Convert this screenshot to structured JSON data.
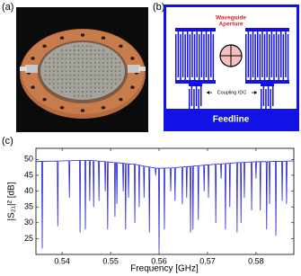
{
  "panel_labels": [
    "(a)",
    "(b)",
    "(c)"
  ],
  "diagram": {
    "aperture_label": [
      "Waveguide",
      "Aperture"
    ],
    "coupling_label": "Coupling IDC",
    "feedline_label": "Feedline"
  },
  "chart_data": {
    "type": "line",
    "xlabel": "Frequency [GHz]",
    "ylabel": "|S₂₁|² [dB]",
    "x": [
      0.5346,
      0.5358,
      0.5359,
      0.536,
      0.539,
      0.5391,
      0.5392,
      0.5414,
      0.5415,
      0.5416,
      0.5436,
      0.5437,
      0.5438,
      0.5447,
      0.5448,
      0.5449,
      0.5456,
      0.5457,
      0.5458,
      0.5464,
      0.5465,
      0.5466,
      0.5475,
      0.5476,
      0.5477,
      0.5488,
      0.5489,
      0.549,
      0.5493,
      0.5494,
      0.5495,
      0.5508,
      0.5509,
      0.551,
      0.5512,
      0.5513,
      0.5514,
      0.5525,
      0.5526,
      0.5527,
      0.553,
      0.5531,
      0.5532,
      0.5536,
      0.5537,
      0.5538,
      0.5549,
      0.555,
      0.5551,
      0.5558,
      0.5559,
      0.556,
      0.5568,
      0.5569,
      0.557,
      0.5579,
      0.558,
      0.5581,
      0.5592,
      0.5593,
      0.5594,
      0.5599,
      0.56,
      0.5601,
      0.561,
      0.5611,
      0.5612,
      0.5623,
      0.5624,
      0.5625,
      0.5632,
      0.5633,
      0.5634,
      0.5647,
      0.5648,
      0.5649,
      0.5656,
      0.5657,
      0.5658,
      0.5664,
      0.5665,
      0.5666,
      0.5669,
      0.567,
      0.5671,
      0.568,
      0.5681,
      0.5682,
      0.5692,
      0.5693,
      0.5694,
      0.5701,
      0.5702,
      0.5703,
      0.5716,
      0.5717,
      0.5718,
      0.5727,
      0.5728,
      0.5729,
      0.5736,
      0.5737,
      0.5738,
      0.5745,
      0.5746,
      0.5747,
      0.576,
      0.5761,
      0.5762,
      0.5768,
      0.5769,
      0.577,
      0.5775,
      0.5776,
      0.5777,
      0.579,
      0.5791,
      0.5792,
      0.5799,
      0.58,
      0.5801,
      0.5808,
      0.5809,
      0.581,
      0.5821,
      0.5822,
      0.5823,
      0.5827,
      0.5828,
      0.5829,
      0.584,
      0.5841,
      0.5842,
      0.5853,
      0.5854,
      0.5855,
      0.5862,
      0.5863,
      0.5864,
      0.5878
    ],
    "series": [
      {
        "color": "#2323e0",
        "values": [
          49.3,
          49.4,
          22,
          49.4,
          49.5,
          29,
          49.5,
          49.6,
          38,
          49.6,
          49.7,
          27,
          49.7,
          49.7,
          28,
          49.7,
          49.7,
          37,
          49.7,
          49.6,
          35,
          49.6,
          49.5,
          37,
          49.5,
          49.3,
          40,
          49.3,
          49.2,
          28,
          49.2,
          49.0,
          32,
          49.0,
          49.0,
          36,
          49.0,
          48.8,
          40,
          48.8,
          48.7,
          28,
          48.7,
          48.6,
          38,
          48.6,
          48.5,
          30,
          48.5,
          48.2,
          35,
          48.2,
          47.9,
          38,
          47.9,
          47.6,
          27,
          47.6,
          47.3,
          45,
          47.3,
          47.2,
          21,
          47.2,
          47.3,
          28,
          47.3,
          47.3,
          40,
          47.3,
          47.4,
          37,
          47.4,
          47.6,
          36,
          47.6,
          47.7,
          38,
          47.7,
          47.8,
          27,
          47.8,
          47.9,
          28,
          47.9,
          48.0,
          31,
          48.0,
          48.2,
          40,
          48.2,
          48.3,
          38,
          48.3,
          48.5,
          30,
          48.5,
          48.6,
          44,
          48.6,
          48.7,
          28,
          48.7,
          48.8,
          35,
          48.8,
          49.0,
          27,
          49.0,
          49.0,
          30,
          49.0,
          49.1,
          38,
          49.1,
          49.2,
          34,
          49.2,
          49.3,
          44,
          49.3,
          49.3,
          34,
          49.3,
          49.3,
          28,
          49.3,
          49.3,
          36,
          49.3,
          49.4,
          26,
          49.4,
          49.4,
          37,
          49.4,
          49.5,
          36,
          49.5,
          49.5
        ]
      }
    ],
    "xlim": [
      0.5346,
      0.5878
    ],
    "ylim": [
      20,
      53.5
    ],
    "xticks": [
      0.54,
      0.55,
      0.56,
      0.57,
      0.58
    ],
    "yticks": [
      25,
      30,
      35,
      40,
      45,
      50
    ],
    "grid": false
  }
}
